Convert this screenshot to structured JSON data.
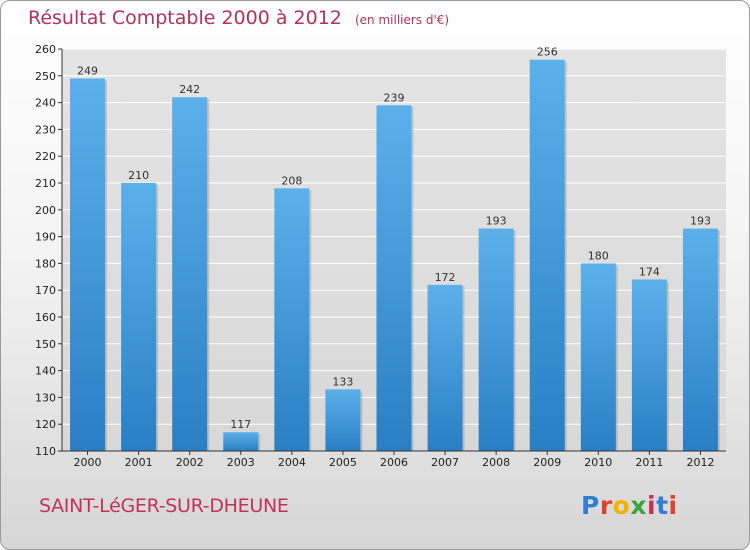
{
  "chart_data": {
    "type": "bar",
    "title": "Résultat Comptable 2000 à 2012",
    "subtitle": "(en milliers d'€)",
    "categories": [
      "2000",
      "2001",
      "2002",
      "2003",
      "2004",
      "2005",
      "2006",
      "2007",
      "2008",
      "2009",
      "2010",
      "2011",
      "2012"
    ],
    "values": [
      249,
      210,
      242,
      117,
      208,
      133,
      239,
      172,
      193,
      256,
      180,
      174,
      193
    ],
    "ylim": [
      110,
      260
    ],
    "yticks": [
      110,
      120,
      130,
      140,
      150,
      160,
      170,
      180,
      190,
      200,
      210,
      220,
      230,
      240,
      250,
      260
    ],
    "grid": true,
    "colors": {
      "bar_light": "#5cb0ea",
      "bar_dark": "#2a7fc4",
      "title": "#b4325a"
    }
  },
  "footer": {
    "commune": "SAINT-LéGER-SUR-DHEUNE",
    "logo": "Proxiti",
    "logo_colors": [
      "#2f7fd0",
      "#e0432c",
      "#f0b400",
      "#3aa540",
      "#c2325d",
      "#2f7fd0",
      "#e0432c"
    ]
  }
}
